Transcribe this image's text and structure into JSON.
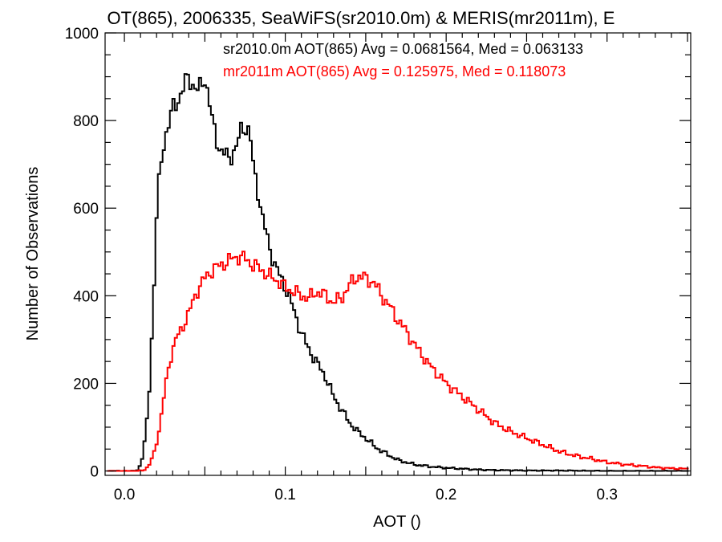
{
  "chart_data": {
    "type": "line",
    "title": "OT(865), 2006335, SeaWiFS(sr2010.0m) & MERIS(mr2011m), E",
    "xlabel": "AOT ()",
    "ylabel": "Number of Observations",
    "xlim": [
      -0.012,
      0.352
    ],
    "ylim": [
      -10,
      1000
    ],
    "x_ticks": [
      "0.0",
      "0.1",
      "0.2",
      "0.3"
    ],
    "y_ticks": [
      "0",
      "200",
      "400",
      "600",
      "800",
      "1000"
    ],
    "grid": false,
    "legend_position": "top-right",
    "series": [
      {
        "name": "sr2010.0m AOT(865) Avg = 0.0681564, Med = 0.063133",
        "color": "#000000",
        "step": "mid",
        "x": [
          -0.01,
          0.0,
          0.005,
          0.008,
          0.01,
          0.012,
          0.015,
          0.018,
          0.02,
          0.022,
          0.025,
          0.028,
          0.03,
          0.033,
          0.036,
          0.04,
          0.043,
          0.046,
          0.05,
          0.052,
          0.055,
          0.058,
          0.06,
          0.065,
          0.07,
          0.072,
          0.075,
          0.078,
          0.08,
          0.083,
          0.086,
          0.09,
          0.093,
          0.096,
          0.1,
          0.105,
          0.11,
          0.115,
          0.12,
          0.125,
          0.13,
          0.135,
          0.14,
          0.145,
          0.15,
          0.155,
          0.16,
          0.165,
          0.17,
          0.18,
          0.19,
          0.2,
          0.21,
          0.22,
          0.23,
          0.25,
          0.27,
          0.3,
          0.35
        ],
        "y": [
          0,
          0,
          0,
          2,
          15,
          45,
          150,
          380,
          580,
          680,
          760,
          800,
          825,
          845,
          870,
          900,
          880,
          865,
          900,
          860,
          790,
          750,
          730,
          715,
          740,
          775,
          790,
          770,
          700,
          640,
          575,
          515,
          475,
          450,
          420,
          370,
          315,
          275,
          245,
          215,
          170,
          140,
          110,
          90,
          75,
          58,
          45,
          35,
          25,
          15,
          10,
          7,
          5,
          3,
          2,
          1,
          1,
          0,
          0
        ]
      },
      {
        "name": "mr2011m AOT(865) Avg = 0.125975, Med = 0.118073",
        "color": "#ff0000",
        "step": "mid",
        "x": [
          -0.01,
          0.0,
          0.008,
          0.012,
          0.015,
          0.018,
          0.022,
          0.025,
          0.028,
          0.032,
          0.035,
          0.04,
          0.045,
          0.05,
          0.055,
          0.06,
          0.065,
          0.07,
          0.075,
          0.08,
          0.085,
          0.09,
          0.095,
          0.1,
          0.105,
          0.11,
          0.115,
          0.12,
          0.125,
          0.13,
          0.135,
          0.14,
          0.145,
          0.15,
          0.155,
          0.16,
          0.165,
          0.17,
          0.175,
          0.18,
          0.185,
          0.19,
          0.195,
          0.2,
          0.21,
          0.22,
          0.23,
          0.24,
          0.25,
          0.26,
          0.27,
          0.28,
          0.29,
          0.3,
          0.31,
          0.32,
          0.33,
          0.34,
          0.35
        ],
        "y": [
          0,
          0,
          0,
          2,
          10,
          35,
          100,
          180,
          250,
          300,
          320,
          360,
          410,
          440,
          460,
          470,
          480,
          490,
          485,
          470,
          460,
          445,
          435,
          420,
          410,
          400,
          395,
          410,
          400,
          385,
          395,
          425,
          445,
          440,
          430,
          400,
          375,
          345,
          320,
          290,
          265,
          240,
          220,
          200,
          170,
          140,
          110,
          90,
          75,
          60,
          45,
          35,
          28,
          20,
          15,
          12,
          8,
          6,
          5
        ]
      }
    ]
  }
}
